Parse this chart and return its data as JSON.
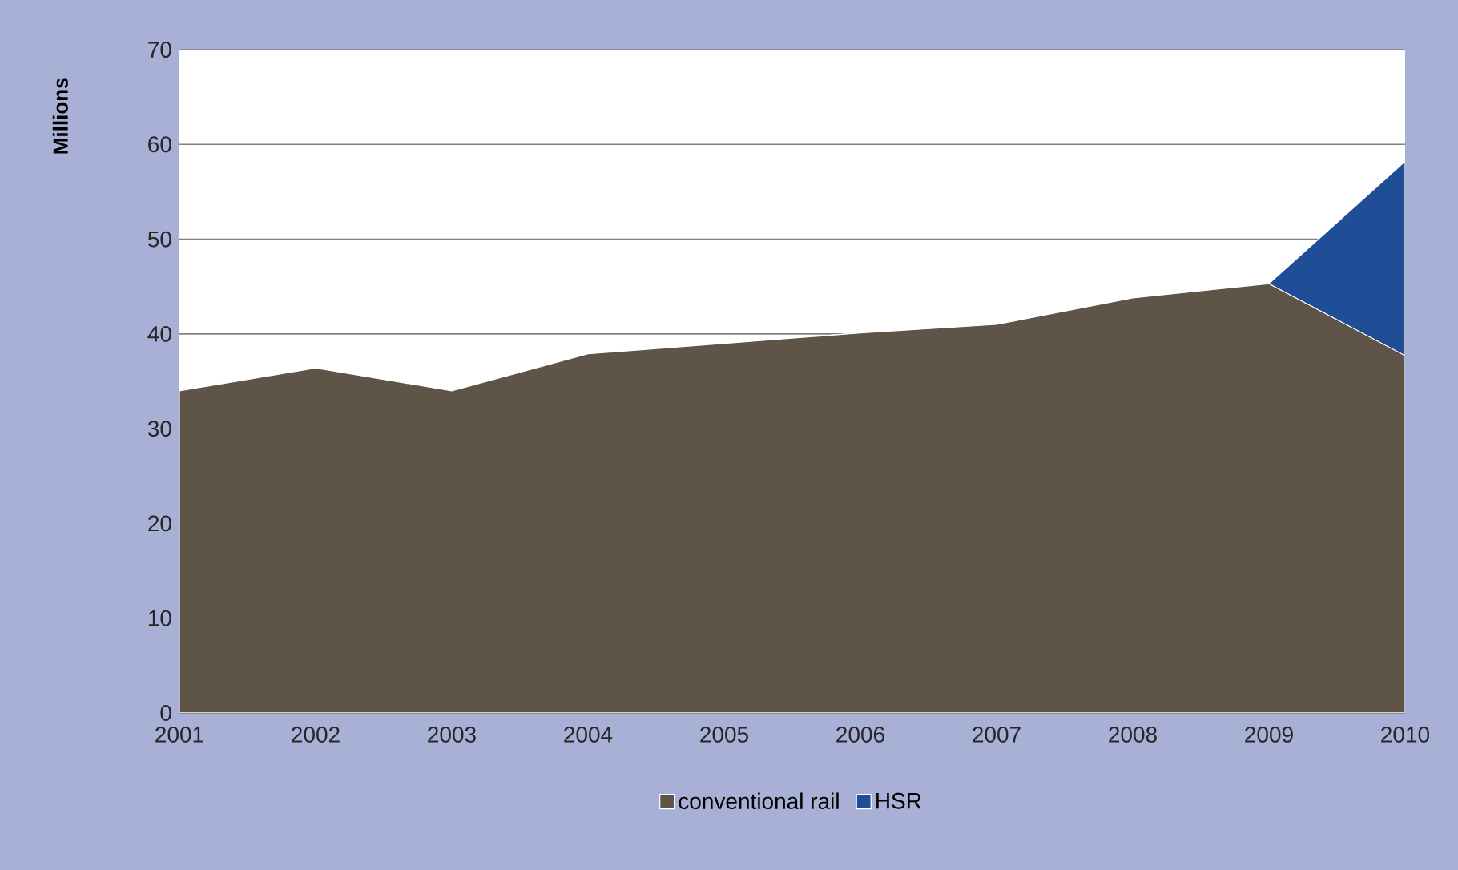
{
  "chart_data": {
    "type": "area",
    "ylabel": "Millions",
    "categories": [
      "2001",
      "2002",
      "2003",
      "2004",
      "2005",
      "2006",
      "2007",
      "2008",
      "2009",
      "2010"
    ],
    "series": [
      {
        "name": "conventional rail",
        "color": "#5e5548",
        "values": [
          34.0,
          36.4,
          34.0,
          37.9,
          39.0,
          40.1,
          41.0,
          43.8,
          45.3,
          37.7
        ]
      },
      {
        "name": "HSR",
        "color": "#1f4e96",
        "values": [
          0,
          0,
          0,
          0,
          0,
          0,
          0,
          0,
          0,
          20.5
        ]
      }
    ],
    "stacked": true,
    "ylim": [
      0,
      70
    ],
    "yticks": [
      0,
      10,
      20,
      30,
      40,
      50,
      60,
      70
    ],
    "grid": "y",
    "legend": "bottom"
  }
}
